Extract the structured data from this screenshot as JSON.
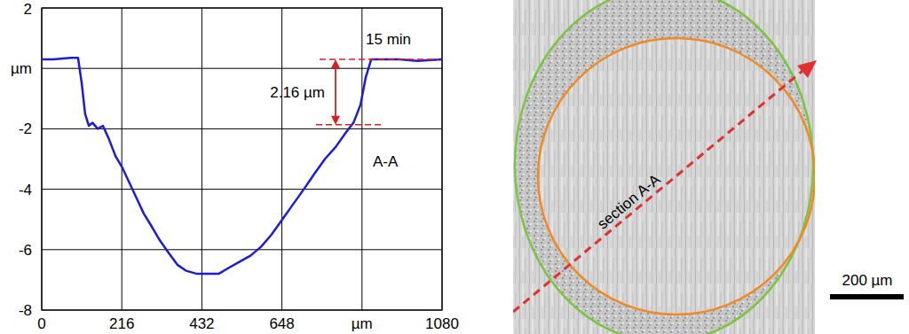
{
  "chart_data": {
    "type": "line",
    "x": [
      0,
      31,
      79,
      98,
      108,
      117,
      127,
      137,
      151,
      165,
      180,
      199,
      218,
      237,
      256,
      275,
      295,
      319,
      342,
      366,
      390,
      419,
      448,
      477,
      505,
      534,
      563,
      592,
      620,
      649,
      678,
      707,
      735,
      764,
      793,
      822,
      841,
      860,
      874,
      889,
      917,
      965,
      1013,
      1080
    ],
    "values": [
      0.3,
      0.3,
      0.35,
      0.35,
      -0.5,
      -1.5,
      -1.9,
      -1.8,
      -2.0,
      -1.9,
      -2.3,
      -2.9,
      -3.3,
      -3.8,
      -4.3,
      -4.8,
      -5.2,
      -5.7,
      -6.1,
      -6.5,
      -6.7,
      -6.8,
      -6.8,
      -6.8,
      -6.6,
      -6.4,
      -6.2,
      -5.9,
      -5.5,
      -5.0,
      -4.5,
      -4.0,
      -3.5,
      -3.0,
      -2.6,
      -2.1,
      -1.8,
      -1.2,
      -0.3,
      0.3,
      0.3,
      0.3,
      0.25,
      0.3
    ],
    "color": "#1c1cd8",
    "xlim": [
      0,
      1080
    ],
    "ylim": [
      -8,
      2
    ],
    "xticks": [
      0,
      216,
      432,
      648,
      {
        "value": 864,
        "label": "µm"
      },
      1080
    ],
    "yticks": [
      -8,
      -6,
      -4,
      -2,
      {
        "value": 0,
        "label": "µm"
      },
      2
    ],
    "grid": true,
    "annotations": [
      {
        "text": "15 min"
      },
      {
        "text": "A-A"
      },
      {
        "text": "2.16 µm",
        "values": [
          0.3,
          -1.86
        ]
      }
    ]
  },
  "micrograph": {
    "label": "section A-A",
    "scale_bar": "200 µm"
  }
}
